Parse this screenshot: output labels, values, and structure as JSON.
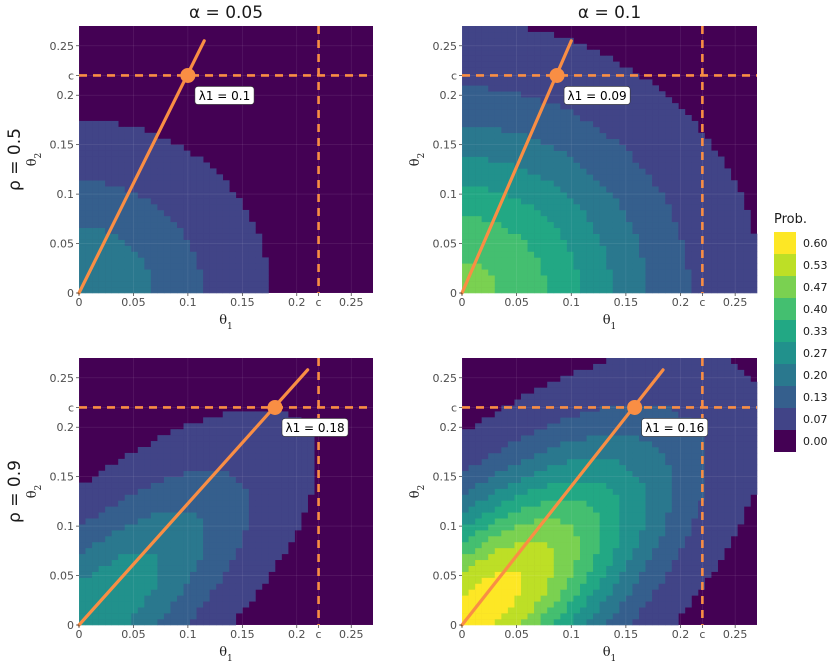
{
  "chart_data": [
    {
      "type": "heatmap",
      "column_label": "α = 0.05",
      "row_label": "ρ = 0.5",
      "xlabel": "θ1",
      "ylabel": "θ2",
      "xlim": [
        0,
        0.27
      ],
      "ylim": [
        0,
        0.27
      ],
      "x_ticks": [
        "0",
        "0.05",
        "0.1",
        "0.15",
        "0.2",
        "c",
        "0.25"
      ],
      "y_ticks": [
        "0",
        "0.05",
        "0.1",
        "0.15",
        "c",
        "0.2",
        "0.25"
      ],
      "c": 0.22,
      "lambda_label": "λ1 = 0.1",
      "lambda_point": {
        "x": 0.1,
        "y": 0.22
      },
      "line_end": {
        "x": 0.115,
        "y": 0.255
      },
      "peak_probability": 0.22,
      "peak_location": {
        "x": 0.0,
        "y": 0.0
      },
      "spread_along": 0.09,
      "spread_across": 0.09
    },
    {
      "type": "heatmap",
      "column_label": "α = 0.1",
      "row_label": "ρ = 0.5",
      "xlabel": "θ1",
      "ylabel": "θ2",
      "xlim": [
        0,
        0.27
      ],
      "ylim": [
        0,
        0.27
      ],
      "x_ticks": [
        "0",
        "0.05",
        "0.1",
        "0.15",
        "0.2",
        "c",
        "0.25"
      ],
      "y_ticks": [
        "0",
        "0.05",
        "0.1",
        "0.15",
        "c",
        "0.2",
        "0.25"
      ],
      "c": 0.22,
      "lambda_label": "λ1 = 0.09",
      "lambda_point": {
        "x": 0.087,
        "y": 0.22
      },
      "line_end": {
        "x": 0.1,
        "y": 0.255
      },
      "peak_probability": 0.45,
      "peak_location": {
        "x": 0.0,
        "y": 0.0
      },
      "spread_along": 0.12,
      "spread_across": 0.12
    },
    {
      "type": "heatmap",
      "column_label": "α = 0.05",
      "row_label": "ρ = 0.9",
      "xlabel": "θ1",
      "ylabel": "θ2",
      "xlim": [
        0,
        0.27
      ],
      "ylim": [
        0,
        0.27
      ],
      "x_ticks": [
        "0",
        "0.05",
        "0.1",
        "0.15",
        "0.2",
        "c",
        "0.25"
      ],
      "y_ticks": [
        "0",
        "0.05",
        "0.1",
        "0.15",
        "c",
        "0.2",
        "0.25"
      ],
      "c": 0.22,
      "lambda_label": "λ1 = 0.18",
      "lambda_point": {
        "x": 0.18,
        "y": 0.22
      },
      "line_end": {
        "x": 0.21,
        "y": 0.258
      },
      "peak_probability": 0.28,
      "peak_location": {
        "x": 0.015,
        "y": 0.015
      },
      "spread_along": 0.13,
      "spread_across": 0.05
    },
    {
      "type": "heatmap",
      "column_label": "α = 0.1",
      "row_label": "ρ = 0.9",
      "xlabel": "θ1",
      "ylabel": "θ2",
      "xlim": [
        0,
        0.27
      ],
      "ylim": [
        0,
        0.27
      ],
      "x_ticks": [
        "0",
        "0.05",
        "0.1",
        "0.15",
        "0.2",
        "c",
        "0.25"
      ],
      "y_ticks": [
        "0",
        "0.05",
        "0.1",
        "0.15",
        "c",
        "0.2",
        "0.25"
      ],
      "c": 0.22,
      "lambda_label": "λ1 = 0.16",
      "lambda_point": {
        "x": 0.158,
        "y": 0.22
      },
      "line_end": {
        "x": 0.184,
        "y": 0.258
      },
      "peak_probability": 0.6,
      "peak_location": {
        "x": 0.02,
        "y": 0.02
      },
      "spread_along": 0.14,
      "spread_across": 0.06
    }
  ],
  "legend": {
    "title": "Prob.",
    "labels": [
      "0.60",
      "0.53",
      "0.47",
      "0.40",
      "0.33",
      "0.27",
      "0.20",
      "0.13",
      "0.07",
      "0.00"
    ],
    "colors": [
      "#fde725",
      "#bddf26",
      "#7ad151",
      "#44bf70",
      "#22a884",
      "#21918c",
      "#2a788e",
      "#355f8d",
      "#414487",
      "#440154"
    ]
  },
  "colors": {
    "line": "#f98e44",
    "point": "#f98e44",
    "background": "#440154"
  }
}
